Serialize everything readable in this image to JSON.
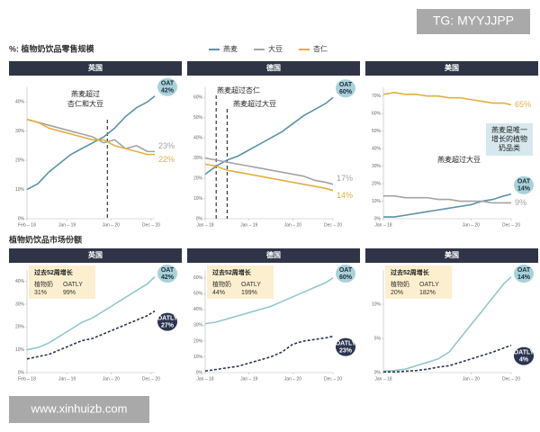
{
  "page": {
    "watermark_top": "TG: MYYJJPP",
    "section_1": "%: 植物奶饮品零售规模",
    "section_2": "植物奶饮品市场份额",
    "watermark_bottom": "www.xinhuizb.com"
  },
  "chart_data": [
    {
      "type": "line",
      "title": "英国",
      "x": [
        0,
        3,
        6,
        9,
        12,
        15,
        18,
        21,
        24,
        27,
        30,
        33,
        35
      ],
      "xlim": [
        0,
        35
      ],
      "xticks": [
        {
          "value": 0,
          "label": "Feb – 18"
        },
        {
          "value": 11,
          "label": "Jan – 19"
        },
        {
          "value": 23,
          "label": "Jan – 20"
        },
        {
          "value": 34,
          "label": "Dec – 20"
        }
      ],
      "ylim": [
        0,
        45
      ],
      "yticks": [
        {
          "value": 0,
          "label": "0%"
        },
        {
          "value": 10,
          "label": "10%"
        },
        {
          "value": 20,
          "label": "20%"
        },
        {
          "value": 30,
          "label": "30%"
        },
        {
          "value": 40,
          "label": "40%"
        }
      ],
      "series": [
        {
          "name": "燕麦",
          "tag": "OAT",
          "color": "#5b93a8",
          "values": [
            10,
            12,
            16,
            19,
            22,
            24,
            26,
            28,
            31,
            35,
            38,
            40,
            42
          ],
          "value_labels": [
            null,
            null,
            null,
            null,
            null,
            null,
            null,
            null,
            null,
            null,
            null,
            null,
            "42%"
          ]
        },
        {
          "name": "大豆",
          "color": "#a3a3a3",
          "values": [
            34,
            33,
            32,
            31,
            30,
            29,
            28,
            26,
            27,
            24,
            25,
            23,
            23
          ],
          "value_labels": [
            null,
            null,
            null,
            null,
            null,
            null,
            null,
            null,
            null,
            null,
            null,
            null,
            "23%"
          ]
        },
        {
          "name": "杏仁",
          "color": "#e0b040",
          "values": [
            34,
            33,
            31,
            30,
            29,
            28,
            27,
            27,
            25,
            24,
            23,
            22,
            22
          ],
          "value_labels": [
            null,
            null,
            null,
            null,
            null,
            null,
            null,
            null,
            null,
            null,
            null,
            null,
            "22%"
          ]
        }
      ],
      "annotations": [
        {
          "text": [
            "燕麦超过",
            "杏仁和大豆"
          ],
          "x": 22
        }
      ]
    },
    {
      "type": "line",
      "title": "德国",
      "x": [
        0,
        3,
        6,
        9,
        12,
        15,
        18,
        21,
        24,
        27,
        30,
        33,
        35
      ],
      "xlim": [
        0,
        35
      ],
      "xticks": [
        {
          "value": 0,
          "label": "Jan – 18"
        },
        {
          "value": 12,
          "label": "Jan – 19"
        },
        {
          "value": 24,
          "label": "Jan – 20"
        },
        {
          "value": 35,
          "label": "Dec – 20"
        }
      ],
      "ylim": [
        0,
        65
      ],
      "yticks": [
        {
          "value": 0,
          "label": "0%"
        },
        {
          "value": 10,
          "label": "10%"
        },
        {
          "value": 20,
          "label": "20%"
        },
        {
          "value": 30,
          "label": "30%"
        },
        {
          "value": 40,
          "label": "40%"
        },
        {
          "value": 50,
          "label": "50%"
        },
        {
          "value": 60,
          "label": "60%"
        }
      ],
      "series": [
        {
          "name": "燕麦",
          "tag": "OAT",
          "color": "#5b93a8",
          "values": [
            22,
            26,
            29,
            31,
            34,
            37,
            40,
            43,
            47,
            51,
            54,
            57,
            60
          ],
          "value_labels": [
            null,
            null,
            null,
            null,
            null,
            null,
            null,
            null,
            null,
            null,
            null,
            null,
            "60%"
          ]
        },
        {
          "name": "大豆",
          "color": "#a3a3a3",
          "values": [
            30,
            29,
            28,
            27,
            26,
            25,
            24,
            23,
            22,
            21,
            19,
            18,
            17
          ],
          "value_labels": [
            null,
            null,
            null,
            null,
            null,
            null,
            null,
            null,
            null,
            null,
            null,
            null,
            "17%"
          ]
        },
        {
          "name": "杏仁",
          "color": "#e0b040",
          "values": [
            27,
            26,
            24,
            23,
            22,
            21,
            20,
            19,
            18,
            17,
            16,
            15,
            14
          ],
          "value_labels": [
            null,
            null,
            null,
            null,
            null,
            null,
            null,
            null,
            null,
            null,
            null,
            null,
            "14%"
          ]
        }
      ],
      "annotations": [
        {
          "text": [
            "燕麦超过杏仁"
          ],
          "x": 3
        },
        {
          "text": [
            "燕麦超过大豆"
          ],
          "x": 6
        }
      ]
    },
    {
      "type": "line",
      "title": "美国",
      "x": [
        0,
        3,
        6,
        9,
        12,
        15,
        18,
        21,
        24,
        27,
        30,
        33,
        35
      ],
      "xlim": [
        0,
        35
      ],
      "xticks": [
        {
          "value": 0,
          "label": "Jan – 18"
        },
        {
          "value": 24,
          "label": "Jan – 20"
        },
        {
          "value": 35,
          "label": "Dec – 20"
        }
      ],
      "ylim": [
        0,
        75
      ],
      "yticks": [
        {
          "value": 0,
          "label": "0%"
        },
        {
          "value": 10,
          "label": "10%"
        },
        {
          "value": 20,
          "label": "20%"
        },
        {
          "value": 30,
          "label": "30%"
        },
        {
          "value": 40,
          "label": "40%"
        },
        {
          "value": 50,
          "label": "50%"
        },
        {
          "value": 60,
          "label": "60%"
        },
        {
          "value": 70,
          "label": "70%"
        }
      ],
      "series": [
        {
          "name": "燕麦",
          "tag": "OAT",
          "color": "#5b93a8",
          "values": [
            1,
            1,
            2,
            3,
            4,
            5,
            6,
            7,
            8,
            10,
            11,
            13,
            14
          ],
          "value_labels": [
            null,
            null,
            null,
            null,
            null,
            null,
            null,
            null,
            null,
            null,
            null,
            null,
            "14%"
          ]
        },
        {
          "name": "大豆",
          "color": "#a3a3a3",
          "values": [
            13,
            13,
            12,
            12,
            12,
            11,
            11,
            10,
            10,
            10,
            9,
            9,
            9
          ],
          "value_labels": [
            null,
            null,
            null,
            null,
            null,
            null,
            null,
            null,
            null,
            null,
            null,
            null,
            "9%"
          ]
        },
        {
          "name": "杏仁",
          "color": "#e0b040",
          "values": [
            71,
            72,
            71,
            71,
            70,
            70,
            69,
            69,
            68,
            67,
            66,
            66,
            65
          ],
          "value_labels": [
            null,
            null,
            null,
            null,
            null,
            null,
            null,
            null,
            null,
            null,
            null,
            null,
            "65%"
          ]
        }
      ],
      "annotations": [
        {
          "text": [
            "燕麦超过大豆"
          ]
        }
      ],
      "callout": [
        "燕麦是唯一",
        "增长的植物",
        "奶品类"
      ]
    },
    {
      "type": "line",
      "title": "英国",
      "x": [
        0,
        3,
        6,
        9,
        12,
        15,
        18,
        21,
        24,
        27,
        30,
        33,
        35
      ],
      "xlim": [
        0,
        35
      ],
      "xticks": [
        {
          "value": 0,
          "label": "Feb – 18"
        },
        {
          "value": 11,
          "label": "Jan – 19"
        },
        {
          "value": 23,
          "label": "Jan – 20"
        },
        {
          "value": 34,
          "label": "Dec – 20"
        }
      ],
      "ylim": [
        0,
        45
      ],
      "yticks": [
        {
          "value": 0,
          "label": "0%"
        },
        {
          "value": 10,
          "label": "10%"
        },
        {
          "value": 20,
          "label": "20%"
        },
        {
          "value": 30,
          "label": "30%"
        },
        {
          "value": 40,
          "label": "40%"
        }
      ],
      "series": [
        {
          "name": "OAT",
          "color": "#93c7c9",
          "values": [
            10,
            11,
            13,
            16,
            19,
            22,
            24,
            27,
            30,
            33,
            36,
            39,
            42
          ],
          "value_labels": [
            null,
            null,
            null,
            null,
            null,
            null,
            null,
            null,
            null,
            null,
            null,
            null,
            "42%"
          ]
        },
        {
          "name": "OATLY",
          "color": "#2b3450",
          "line_style": "dashed",
          "values": [
            6,
            7,
            8,
            10,
            12,
            14,
            15,
            17,
            19,
            21,
            23,
            25,
            27
          ],
          "value_labels": [
            null,
            null,
            null,
            null,
            null,
            null,
            null,
            null,
            null,
            null,
            null,
            null,
            "27%"
          ]
        }
      ],
      "growth": {
        "title": "过去52周增长",
        "labels": [
          "植物奶",
          "OATLY"
        ],
        "values": [
          31,
          99
        ],
        "value_labels": [
          "31%",
          "99%"
        ]
      }
    },
    {
      "type": "line",
      "title": "德国",
      "x": [
        0,
        3,
        6,
        9,
        12,
        15,
        18,
        21,
        24,
        27,
        30,
        33,
        35
      ],
      "xlim": [
        0,
        35
      ],
      "xticks": [
        {
          "value": 0,
          "label": "Jan – 18"
        },
        {
          "value": 12,
          "label": "Jan – 19"
        },
        {
          "value": 24,
          "label": "Jan – 20"
        },
        {
          "value": 35,
          "label": "Dec – 20"
        }
      ],
      "ylim": [
        0,
        65
      ],
      "yticks": [
        {
          "value": 0,
          "label": "0%"
        },
        {
          "value": 10,
          "label": "10%"
        },
        {
          "value": 20,
          "label": "20%"
        },
        {
          "value": 30,
          "label": "30%"
        },
        {
          "value": 40,
          "label": "40%"
        },
        {
          "value": 50,
          "label": "50%"
        },
        {
          "value": 60,
          "label": "60%"
        }
      ],
      "series": [
        {
          "name": "OAT",
          "color": "#93c7c9",
          "values": [
            31,
            32,
            34,
            36,
            38,
            40,
            42,
            45,
            48,
            51,
            54,
            57,
            60
          ],
          "value_labels": [
            null,
            null,
            null,
            null,
            null,
            null,
            null,
            null,
            null,
            null,
            null,
            null,
            "60%"
          ]
        },
        {
          "name": "OATLY",
          "color": "#2b3450",
          "line_style": "dashed",
          "values": [
            1,
            2,
            3,
            4,
            6,
            8,
            10,
            13,
            18,
            20,
            21,
            22,
            23
          ],
          "value_labels": [
            null,
            null,
            null,
            null,
            null,
            null,
            null,
            null,
            null,
            null,
            null,
            null,
            "23%"
          ]
        }
      ],
      "growth": {
        "title": "过去52周增长",
        "labels": [
          "植物奶",
          "OATLY"
        ],
        "values": [
          44,
          199
        ],
        "value_labels": [
          "44%",
          "199%"
        ]
      }
    },
    {
      "type": "line",
      "title": "美国",
      "x": [
        0,
        3,
        6,
        9,
        12,
        15,
        18,
        21,
        24,
        27,
        30,
        33,
        35
      ],
      "xlim": [
        0,
        35
      ],
      "xticks": [
        {
          "value": 0,
          "label": "Jan – 18"
        },
        {
          "value": 24,
          "label": "Jan – 20"
        },
        {
          "value": 35,
          "label": "Dec – 20"
        }
      ],
      "ylim": [
        0,
        15
      ],
      "yticks": [
        {
          "value": 0,
          "label": "0%"
        },
        {
          "value": 5,
          "label": "5%"
        },
        {
          "value": 10,
          "label": "10%"
        }
      ],
      "series": [
        {
          "name": "OAT",
          "color": "#93c7c9",
          "values": [
            0.2,
            0.3,
            0.5,
            1,
            1.5,
            2,
            3,
            5,
            7,
            9,
            11,
            13,
            14
          ],
          "value_labels": [
            null,
            null,
            null,
            null,
            null,
            null,
            null,
            null,
            null,
            null,
            null,
            null,
            "14%"
          ]
        },
        {
          "name": "OATLY",
          "color": "#2b3450",
          "line_style": "dashed",
          "values": [
            0.1,
            0.1,
            0.2,
            0.3,
            0.5,
            0.8,
            1,
            1.5,
            2,
            2.5,
            3,
            3.6,
            4
          ],
          "value_labels": [
            null,
            null,
            null,
            null,
            null,
            null,
            null,
            null,
            null,
            null,
            null,
            null,
            "4%"
          ]
        }
      ],
      "growth": {
        "title": "过去52周增长",
        "labels": [
          "植物奶",
          "OATLY"
        ],
        "values": [
          20,
          182
        ],
        "value_labels": [
          "20%",
          "182%"
        ]
      }
    }
  ]
}
